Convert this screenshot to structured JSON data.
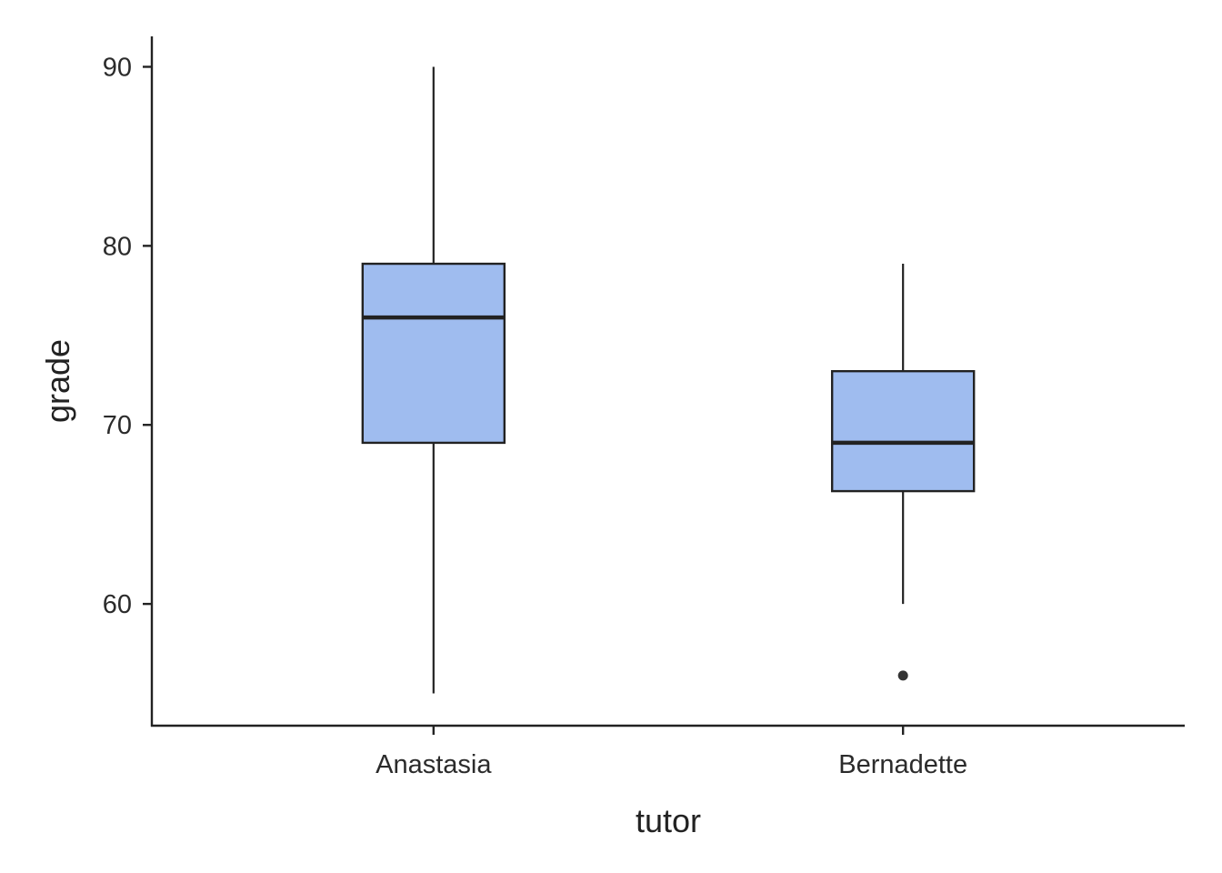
{
  "chart_data": {
    "type": "boxplot",
    "xlabel": "tutor",
    "ylabel": "grade",
    "ylim": [
      53.2,
      91.7
    ],
    "yticks": [
      60,
      70,
      80,
      90
    ],
    "categories": [
      "Anastasia",
      "Bernadette"
    ],
    "boxes": [
      {
        "category": "Anastasia",
        "whisker_low": 55,
        "q1": 69,
        "median": 76,
        "q3": 79,
        "whisker_high": 90,
        "outliers": []
      },
      {
        "category": "Bernadette",
        "whisker_low": 60,
        "q1": 66.3,
        "median": 69,
        "q3": 73,
        "whisker_high": 79,
        "outliers": [
          56
        ]
      }
    ],
    "fill_color": "#9fbcef",
    "line_color": "#222222",
    "grid": false,
    "legend": "none"
  }
}
